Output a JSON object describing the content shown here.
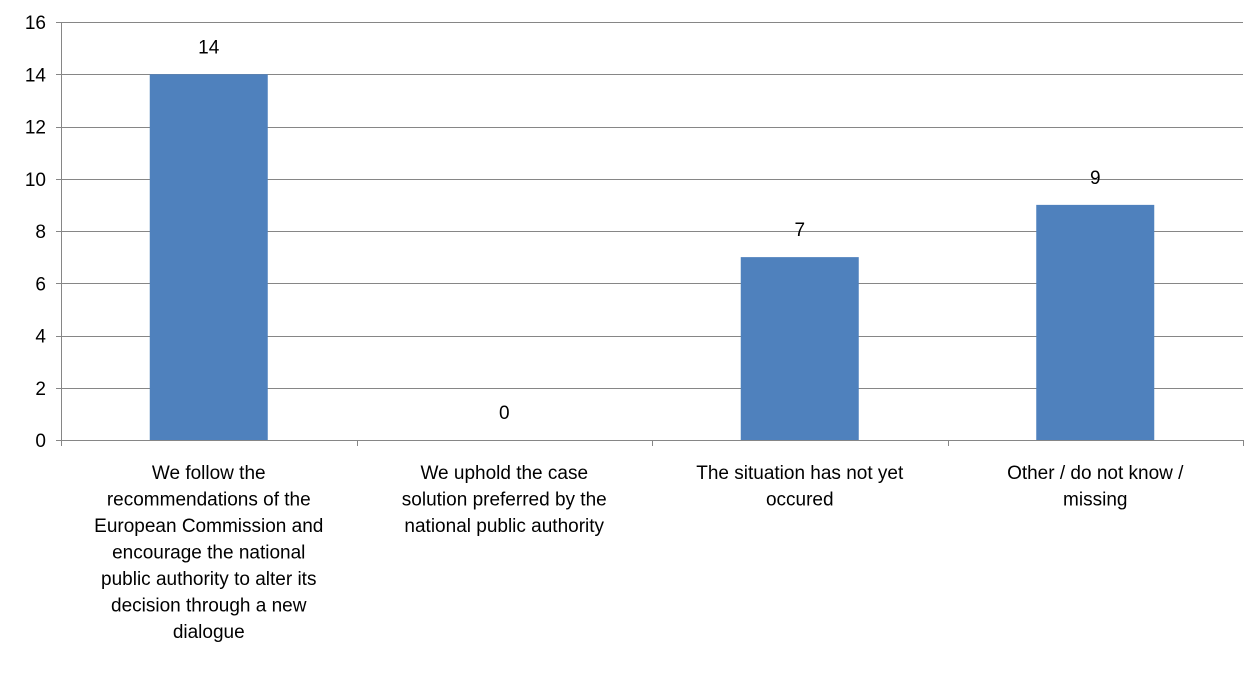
{
  "chart_data": {
    "type": "bar",
    "categories": [
      [
        "We follow the",
        "recommendations of the",
        "European Commission and",
        "encourage the national",
        "public authority to alter its",
        "decision through a new",
        "dialogue"
      ],
      [
        "We uphold the case",
        "solution preferred by the",
        "national public authority"
      ],
      [
        "The situation has not yet",
        "occured"
      ],
      [
        "Other / do not know /",
        "missing"
      ]
    ],
    "values": [
      14,
      0,
      7,
      9
    ],
    "data_labels": [
      "14",
      "0",
      "7",
      "9"
    ],
    "ylim": [
      0,
      16
    ],
    "yticks": [
      "0",
      "2",
      "4",
      "6",
      "8",
      "10",
      "12",
      "14",
      "16"
    ],
    "grid": true,
    "legend": "none",
    "bar_color": "#4f81bd",
    "grid_color": "#868686"
  }
}
